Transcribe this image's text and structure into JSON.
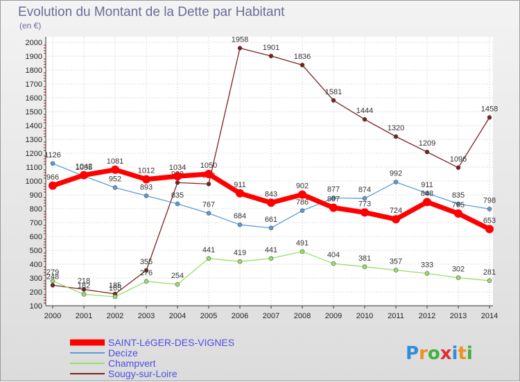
{
  "chart_data": {
    "type": "line",
    "title": "Evolution du Montant de la Dette par Habitant",
    "subtitle": "(en €)",
    "xlabel": "",
    "ylabel": "",
    "x": [
      "2000",
      "2001",
      "2002",
      "2003",
      "2004",
      "2005",
      "2006",
      "2007",
      "2008",
      "2009",
      "2010",
      "2011",
      "2012",
      "2013",
      "2014"
    ],
    "ylim": [
      100,
      2000
    ],
    "yticks": [
      100,
      200,
      300,
      400,
      500,
      600,
      700,
      800,
      900,
      1000,
      1100,
      1200,
      1300,
      1400,
      1500,
      1600,
      1700,
      1800,
      1900,
      2000
    ],
    "grid": true,
    "legend_placement": "bottom-left",
    "series": [
      {
        "name": "SAINT-LéGER-DES-VIGNES",
        "color": "#ff0000",
        "values": [
          966,
          1042,
          1081,
          1012,
          1034,
          1050,
          911,
          843,
          902,
          807,
          773,
          724,
          848,
          765,
          653
        ]
      },
      {
        "name": "Decize",
        "color": "#5b9bd5",
        "values": [
          1126,
          1035,
          952,
          893,
          835,
          767,
          684,
          661,
          786,
          877,
          874,
          992,
          911,
          835,
          798
        ]
      },
      {
        "name": "Champvert",
        "color": "#99dd66",
        "values": [
          279,
          182,
          165,
          276,
          254,
          441,
          419,
          441,
          491,
          404,
          381,
          357,
          333,
          302,
          281
        ]
      },
      {
        "name": "Sougy-sur-Loire",
        "color": "#7a2020",
        "values": [
          248,
          218,
          185,
          355,
          988,
          978,
          1958,
          1901,
          1836,
          1581,
          1444,
          1320,
          1209,
          1096,
          1458
        ]
      }
    ]
  },
  "branding": {
    "logo_letters": [
      "P",
      "r",
      "o",
      "x",
      "i",
      "t",
      "i"
    ],
    "logo_colors": [
      "#2e8fd8",
      "#f09020",
      "#40b040",
      "#e03030",
      "#2e8fd8",
      "#f09020",
      "#40b040"
    ]
  }
}
